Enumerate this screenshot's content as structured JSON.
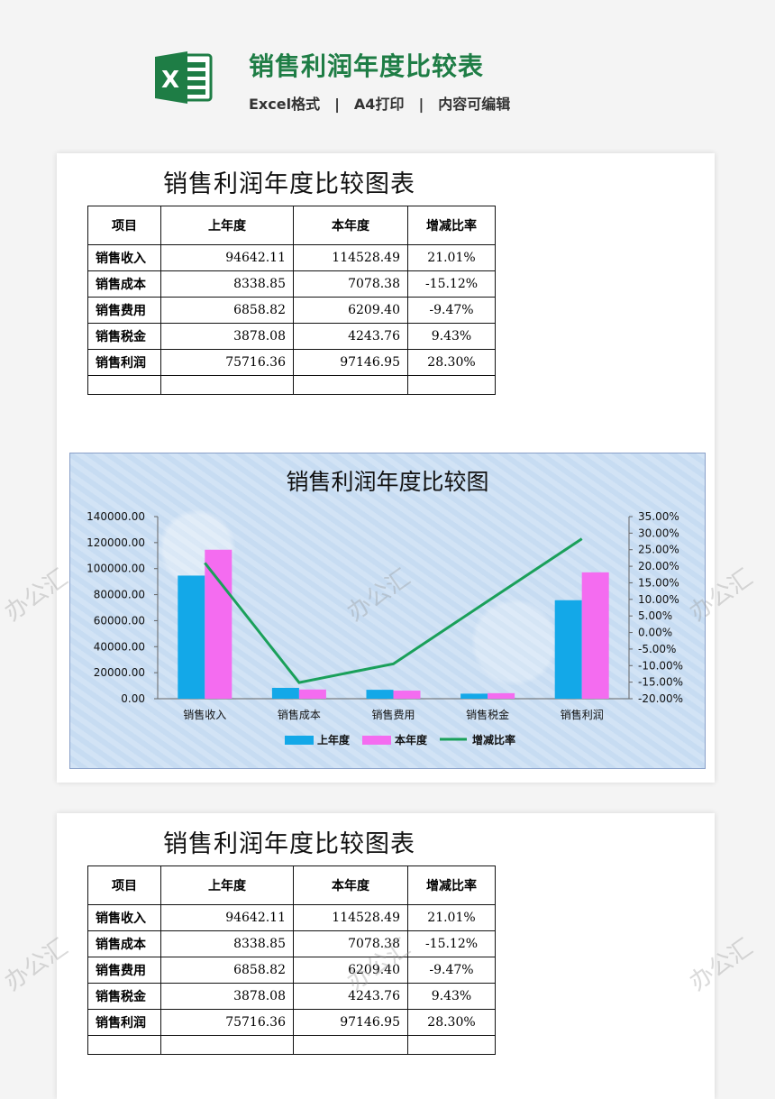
{
  "header": {
    "title": "销售利润年度比较表",
    "sub_items": [
      "Excel格式",
      "A4打印",
      "内容可编辑"
    ],
    "separator": "|",
    "icon": "excel-icon",
    "icon_letter": "X",
    "brand_color": "#1e7d45"
  },
  "sheet": {
    "title": "销售利润年度比较图表",
    "headers": [
      "项目",
      "上年度",
      "本年度",
      "增减比率"
    ],
    "rows": [
      {
        "name": "销售收入",
        "prev": "94642.11",
        "curr": "114528.49",
        "ratio": "21.01%"
      },
      {
        "name": "销售成本",
        "prev": "8338.85",
        "curr": "7078.38",
        "ratio": "-15.12%"
      },
      {
        "name": "销售费用",
        "prev": "6858.82",
        "curr": "6209.40",
        "ratio": "-9.47%"
      },
      {
        "name": "销售税金",
        "prev": "3878.08",
        "curr": "4243.76",
        "ratio": "9.43%"
      },
      {
        "name": "销售利润",
        "prev": "75716.36",
        "curr": "97146.95",
        "ratio": "28.30%"
      }
    ]
  },
  "chart_data": {
    "type": "bar",
    "title": "销售利润年度比较图",
    "categories": [
      "销售收入",
      "销售成本",
      "销售费用",
      "销售税金",
      "销售利润"
    ],
    "series": [
      {
        "name": "上年度",
        "type": "bar",
        "axis": "left",
        "color": "#13a8e8",
        "values": [
          94642.11,
          8338.85,
          6858.82,
          3878.08,
          75716.36
        ]
      },
      {
        "name": "本年度",
        "type": "bar",
        "axis": "left",
        "color": "#f46cf0",
        "values": [
          114528.49,
          7078.38,
          6209.4,
          4243.76,
          97146.95
        ]
      },
      {
        "name": "增减比率",
        "type": "line",
        "axis": "right",
        "color": "#1aa05a",
        "values": [
          21.01,
          -15.12,
          -9.47,
          9.43,
          28.3
        ]
      }
    ],
    "ylim": [
      0,
      140000
    ],
    "y_ticks": [
      "140000.00",
      "120000.00",
      "100000.00",
      "80000.00",
      "60000.00",
      "40000.00",
      "20000.00",
      "0.00"
    ],
    "y2lim": [
      -20,
      35
    ],
    "y2_ticks": [
      "35.00%",
      "30.00%",
      "25.00%",
      "20.00%",
      "15.00%",
      "10.00%",
      "5.00%",
      "0.00%",
      "-5.00%",
      "-10.00%",
      "-15.00%",
      "-20.00%"
    ],
    "legend_position": "bottom",
    "grid": false
  },
  "watermark": "办公汇"
}
